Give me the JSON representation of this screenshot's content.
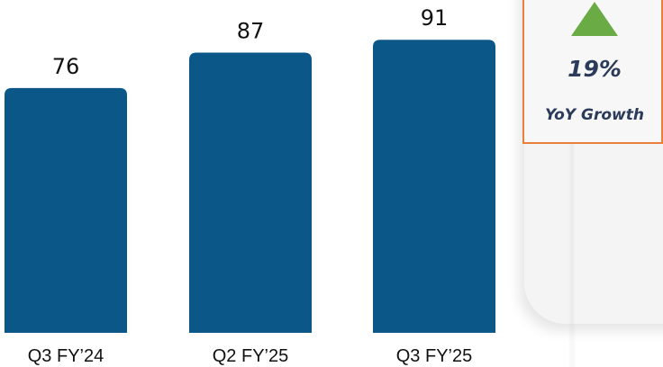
{
  "chart_data": {
    "type": "bar",
    "title": "",
    "xlabel": "",
    "ylabel": "",
    "categories": [
      "Q3 FY’24",
      "Q2 FY’25",
      "Q3 FY’25"
    ],
    "values": [
      76,
      87,
      91
    ],
    "data_labels": [
      "76",
      "87",
      "91"
    ],
    "ylim": [
      0,
      100
    ],
    "grid": false,
    "legend": "none",
    "bar_color": "#0b5788",
    "label_color": "#111111"
  },
  "kpi": {
    "value": "19%",
    "label": "YoY Growth",
    "direction": "up",
    "arrow_icon": "triangle-up-icon",
    "arrow_color": "#6aab46",
    "border_color": "#e87f3a",
    "text_color": "#2b3b59"
  }
}
